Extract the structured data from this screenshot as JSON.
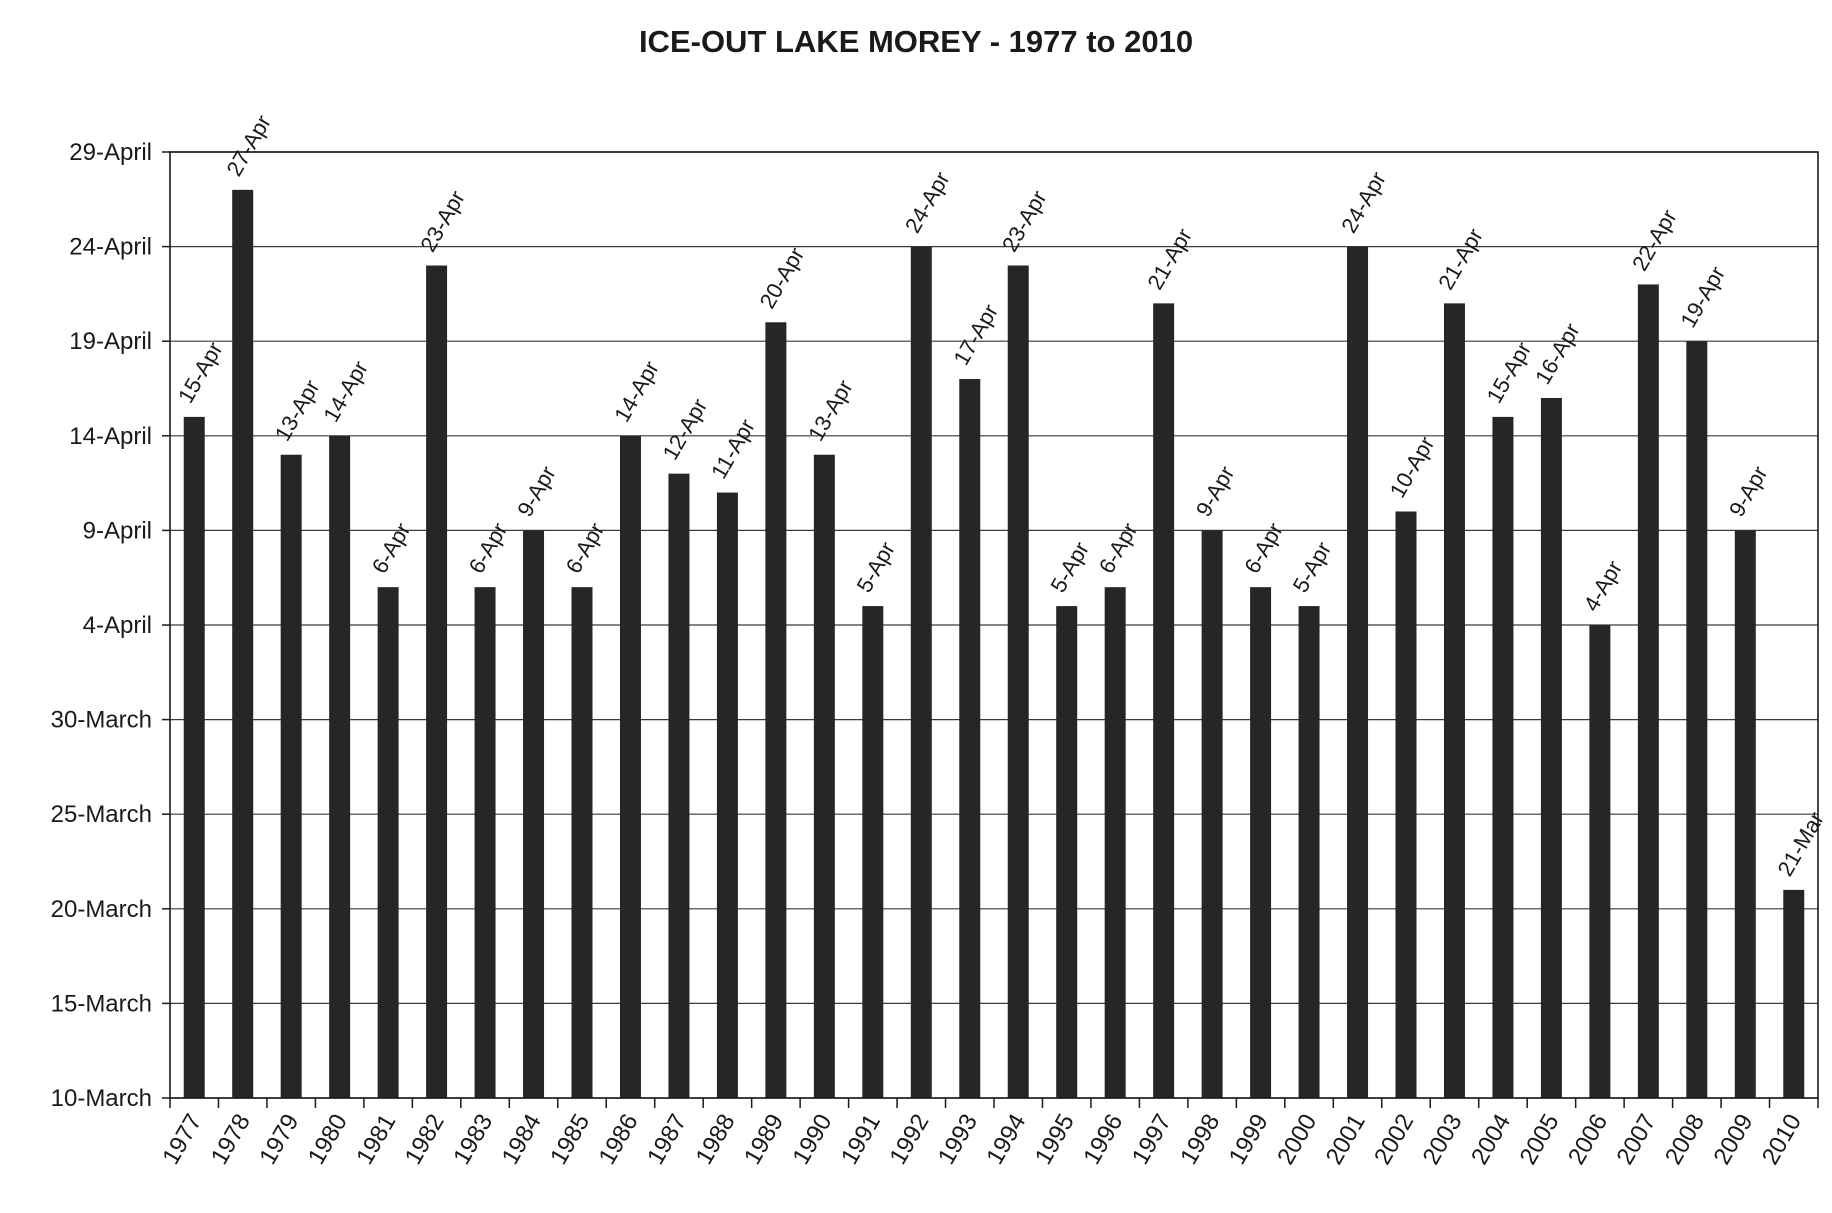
{
  "chart_data": {
    "type": "bar",
    "title": "ICE-OUT LAKE MOREY - 1977 to 2010",
    "xlabel": "",
    "ylabel": "",
    "grid": true,
    "legend": "none",
    "bar_color": "#262626",
    "y_tick_labels": [
      "10-March",
      "15-March",
      "20-March",
      "25-March",
      "30-March",
      "4-April",
      "9-April",
      "14-April",
      "19-April",
      "24-April",
      "29-April"
    ],
    "ylim_days": [
      10,
      60
    ],
    "y_unit_note": "days counted from 1 March",
    "categories": [
      "1977",
      "1978",
      "1979",
      "1980",
      "1981",
      "1982",
      "1983",
      "1984",
      "1985",
      "1986",
      "1987",
      "1988",
      "1989",
      "1990",
      "1991",
      "1992",
      "1993",
      "1994",
      "1995",
      "1996",
      "1997",
      "1998",
      "1999",
      "2000",
      "2001",
      "2002",
      "2003",
      "2004",
      "2005",
      "2006",
      "2007",
      "2008",
      "2009",
      "2010"
    ],
    "labels": [
      "15-Apr",
      "27-Apr",
      "13-Apr",
      "14-Apr",
      "6-Apr",
      "23-Apr",
      "6-Apr",
      "9-Apr",
      "6-Apr",
      "14-Apr",
      "12-Apr",
      "11-Apr",
      "20-Apr",
      "13-Apr",
      "5-Apr",
      "24-Apr",
      "17-Apr",
      "23-Apr",
      "5-Apr",
      "6-Apr",
      "21-Apr",
      "9-Apr",
      "6-Apr",
      "5-Apr",
      "24-Apr",
      "10-Apr",
      "21-Apr",
      "15-Apr",
      "16-Apr",
      "4-Apr",
      "22-Apr",
      "19-Apr",
      "9-Apr",
      "21-Mar"
    ],
    "values": [
      46,
      58,
      44,
      45,
      37,
      54,
      37,
      40,
      37,
      45,
      43,
      42,
      51,
      44,
      36,
      55,
      48,
      54,
      36,
      37,
      52,
      40,
      37,
      36,
      55,
      41,
      52,
      46,
      47,
      35,
      53,
      50,
      40,
      21
    ]
  }
}
